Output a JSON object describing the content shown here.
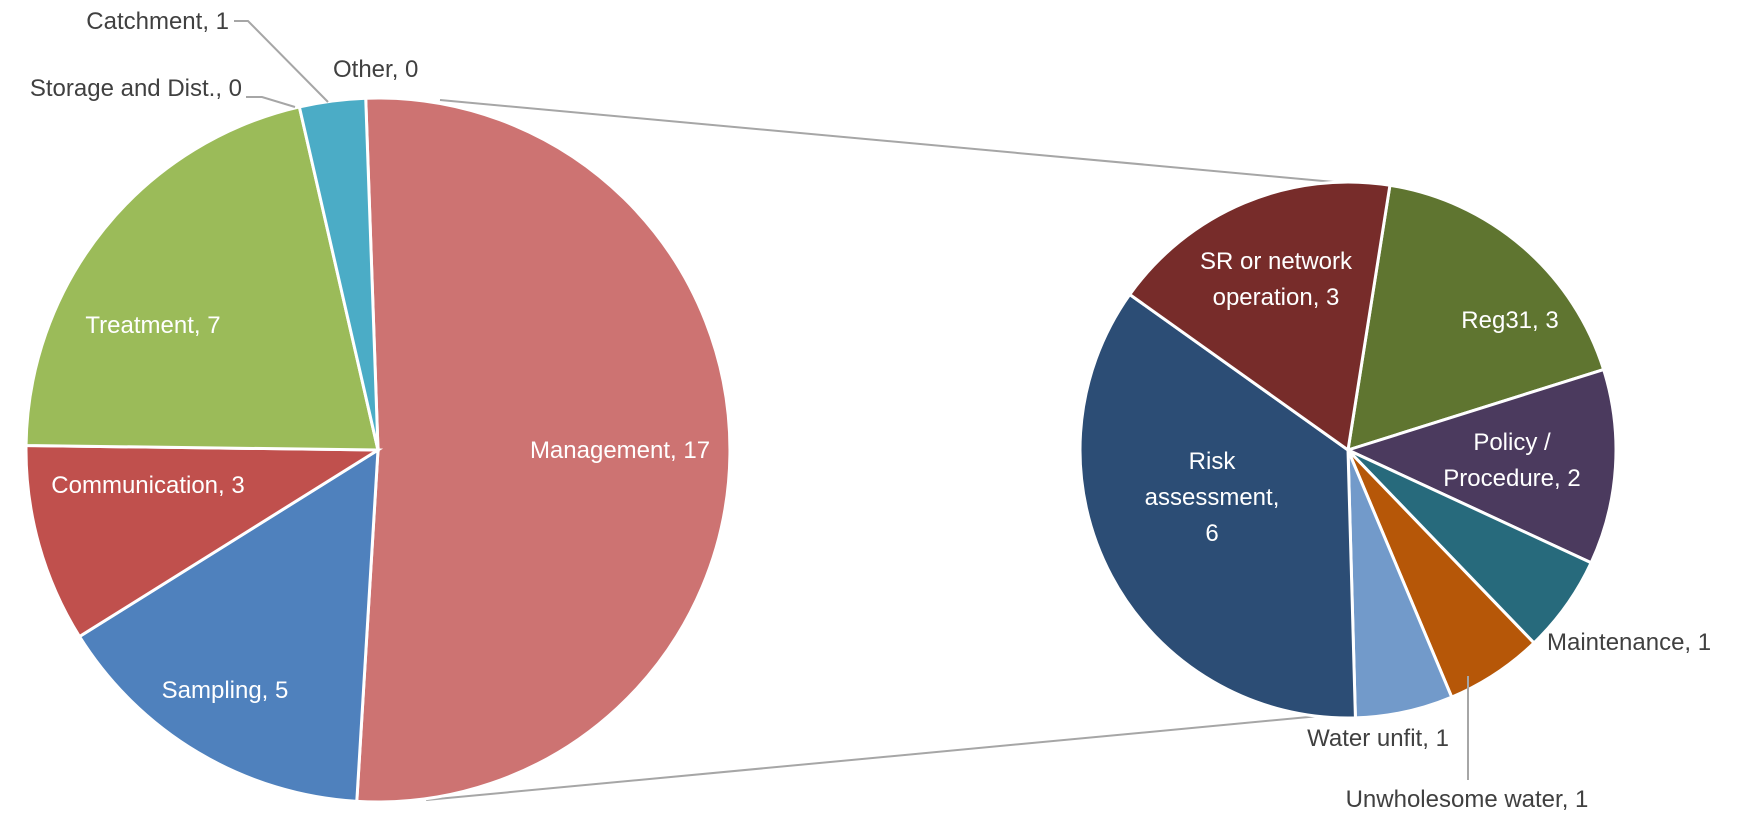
{
  "chart_data": {
    "type": "pie",
    "variant": "pie-of-pie",
    "title": "",
    "colors_note": "slice fill colors listed per entry",
    "main_pie": {
      "series": [
        {
          "name": "Management",
          "value": 17,
          "label": "Management, 17",
          "color": "#CD7372"
        },
        {
          "name": "Sampling",
          "value": 5,
          "label": "Sampling, 5",
          "color": "#4F81BD"
        },
        {
          "name": "Communication",
          "value": 3,
          "label": "Communication, 3",
          "color": "#C0504D"
        },
        {
          "name": "Treatment",
          "value": 7,
          "label": "Treatment, 7",
          "color": "#9BBB59"
        },
        {
          "name": "Storage and Dist.",
          "value": 0,
          "label": "Storage and Dist., 0",
          "color": "#8064A2"
        },
        {
          "name": "Catchment",
          "value": 1,
          "label": "Catchment, 1",
          "color": "#4BACC6"
        },
        {
          "name": "Other",
          "value": 0,
          "label": "Other, 0",
          "color": "#F79646"
        }
      ]
    },
    "secondary_pie": {
      "parent": "Management",
      "series": [
        {
          "name": "Reg31",
          "value": 3,
          "label": "Reg31, 3",
          "color": "#5F7530"
        },
        {
          "name": "Policy / Procedure",
          "value": 2,
          "label": "Policy / Procedure, 2",
          "color": "#4B3A5E"
        },
        {
          "name": "Maintenance",
          "value": 1,
          "label": "Maintenance, 1",
          "color": "#276A7C"
        },
        {
          "name": "Unwholesome water",
          "value": 1,
          "label": "Unwholesome water, 1",
          "color": "#B65708"
        },
        {
          "name": "Water unfit",
          "value": 1,
          "label": "Water unfit, 1",
          "color": "#729ACA"
        },
        {
          "name": "Risk assessment",
          "value": 6,
          "label": "Risk assessment, 6",
          "color": "#2C4D75"
        },
        {
          "name": "SR or network operation",
          "value": 3,
          "label": "SR or network operation, 3",
          "color": "#772C2A"
        }
      ]
    },
    "connector_color": "#A6A6A6",
    "legend": "none"
  }
}
